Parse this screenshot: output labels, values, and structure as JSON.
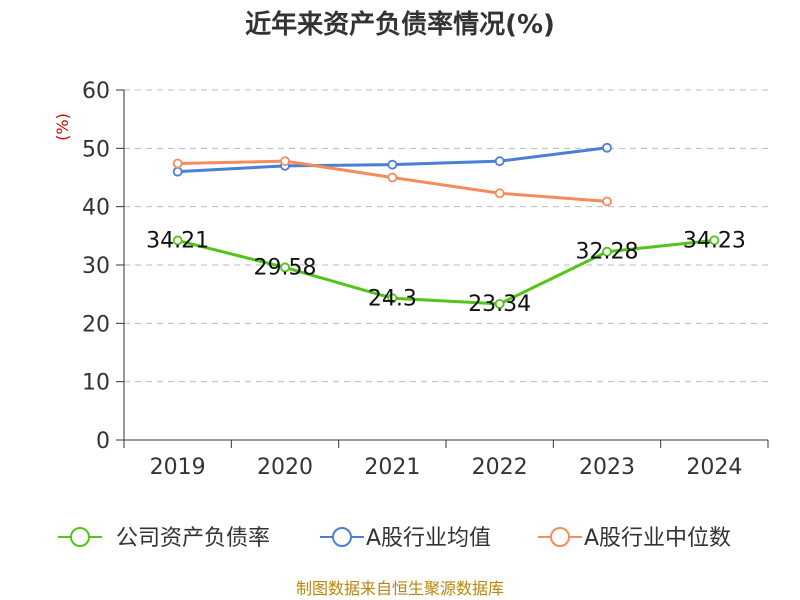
{
  "chart_data": {
    "type": "line",
    "title": "近年来资产负债率情况(%)",
    "ylabel": "(%)",
    "categories": [
      "2019",
      "2020",
      "2021",
      "2022",
      "2023",
      "2024"
    ],
    "ylim": [
      0,
      60
    ],
    "yticks": [
      0,
      10,
      20,
      30,
      40,
      50,
      60
    ],
    "grid": true,
    "legend_position": "bottom",
    "series": [
      {
        "name": "公司资产负债率",
        "color": "#52c41a",
        "values": [
          34.21,
          29.58,
          24.3,
          23.34,
          32.28,
          34.23
        ],
        "labels": [
          "34.21",
          "29.58",
          "24.3",
          "23.34",
          "32.28",
          "34.23"
        ]
      },
      {
        "name": "A股行业均值",
        "color": "#4a7fd6",
        "values": [
          46.0,
          47.0,
          47.2,
          47.8,
          50.1,
          null
        ]
      },
      {
        "name": "A股行业中位数",
        "color": "#f58c5b",
        "values": [
          47.4,
          47.8,
          45.0,
          42.3,
          40.9,
          null
        ]
      }
    ]
  },
  "source": "制图数据来自恒生聚源数据库"
}
